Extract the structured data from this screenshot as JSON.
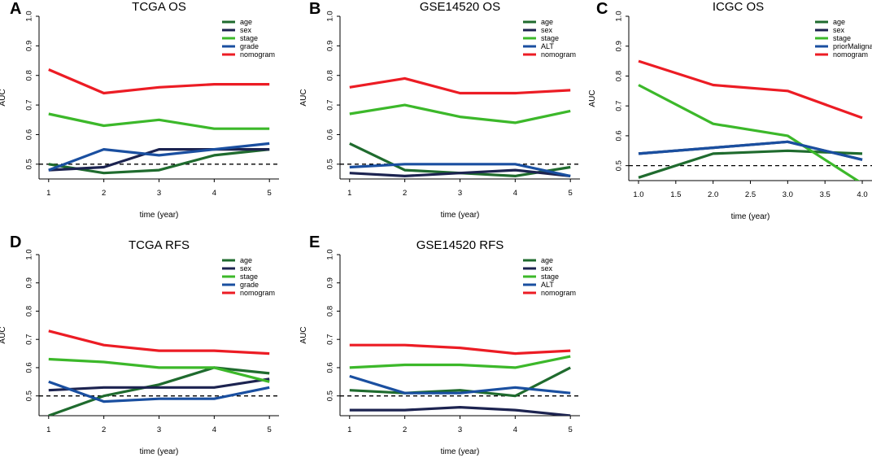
{
  "colors": {
    "age": "#1f6b2e",
    "sex": "#1c2350",
    "stage": "#3cb82a",
    "grade": "#1a4fa0",
    "ALT": "#1a4fa0",
    "priorMalignancy": "#1a4fa0",
    "nomogram": "#ec1c24",
    "reference": "#000000"
  },
  "chart_data": [
    {
      "type": "line",
      "panel": "A",
      "title": "TCGA OS",
      "xlabel": "time (year)",
      "ylabel": "AUC",
      "x": [
        1,
        2,
        3,
        4,
        5
      ],
      "xticks": [
        1,
        2,
        3,
        4,
        5
      ],
      "xtick_labels": [
        "1",
        "2",
        "3",
        "4",
        "5"
      ],
      "ylim": [
        0.45,
        1.0
      ],
      "yticks": [
        0.5,
        0.6,
        0.7,
        0.8,
        0.9,
        1.0
      ],
      "ytick_labels": [
        "0.5",
        "0.6",
        "0.7",
        "0.8",
        "0.9",
        "1.0"
      ],
      "reference_line": 0.5,
      "legend": "top-right",
      "series": [
        {
          "name": "age",
          "color_key": "age",
          "values": [
            0.5,
            0.47,
            0.48,
            0.53,
            0.55
          ]
        },
        {
          "name": "sex",
          "color_key": "sex",
          "values": [
            0.48,
            0.49,
            0.55,
            0.55,
            0.55
          ]
        },
        {
          "name": "stage",
          "color_key": "stage",
          "values": [
            0.67,
            0.63,
            0.65,
            0.62,
            0.62
          ]
        },
        {
          "name": "grade",
          "color_key": "grade",
          "values": [
            0.48,
            0.55,
            0.53,
            0.55,
            0.57
          ]
        },
        {
          "name": "nomogram",
          "color_key": "nomogram",
          "values": [
            0.82,
            0.74,
            0.76,
            0.77,
            0.77
          ]
        }
      ]
    },
    {
      "type": "line",
      "panel": "B",
      "title": "GSE14520 OS",
      "xlabel": "time (year)",
      "ylabel": "AUC",
      "x": [
        1,
        2,
        3,
        4,
        5
      ],
      "xticks": [
        1,
        2,
        3,
        4,
        5
      ],
      "xtick_labels": [
        "1",
        "2",
        "3",
        "4",
        "5"
      ],
      "ylim": [
        0.45,
        1.0
      ],
      "yticks": [
        0.5,
        0.6,
        0.7,
        0.8,
        0.9,
        1.0
      ],
      "ytick_labels": [
        "0.5",
        "0.6",
        "0.7",
        "0.8",
        "0.9",
        "1.0"
      ],
      "reference_line": 0.5,
      "legend": "top-right",
      "series": [
        {
          "name": "age",
          "color_key": "age",
          "values": [
            0.57,
            0.48,
            0.47,
            0.46,
            0.49
          ]
        },
        {
          "name": "sex",
          "color_key": "sex",
          "values": [
            0.47,
            0.46,
            0.47,
            0.48,
            0.46
          ]
        },
        {
          "name": "stage",
          "color_key": "stage",
          "values": [
            0.67,
            0.7,
            0.66,
            0.64,
            0.68
          ]
        },
        {
          "name": "ALT",
          "color_key": "ALT",
          "values": [
            0.49,
            0.5,
            0.5,
            0.5,
            0.46
          ]
        },
        {
          "name": "nomogram",
          "color_key": "nomogram",
          "values": [
            0.76,
            0.79,
            0.74,
            0.74,
            0.75
          ]
        }
      ]
    },
    {
      "type": "line",
      "panel": "C",
      "title": "ICGC OS",
      "xlabel": "time (year)",
      "ylabel": "AUC",
      "x": [
        1.0,
        2.0,
        3.0,
        4.0
      ],
      "xticks": [
        1.0,
        1.5,
        2.0,
        2.5,
        3.0,
        3.5,
        4.0
      ],
      "xtick_labels": [
        "1.0",
        "1.5",
        "2.0",
        "2.5",
        "3.0",
        "3.5",
        "4.0"
      ],
      "ylim": [
        0.45,
        1.0
      ],
      "yticks": [
        0.5,
        0.6,
        0.7,
        0.8,
        0.9,
        1.0
      ],
      "ytick_labels": [
        "0.5",
        "0.6",
        "0.7",
        "0.8",
        "0.9",
        "1.0"
      ],
      "reference_line": 0.5,
      "legend": "top-right",
      "series": [
        {
          "name": "age",
          "color_key": "age",
          "values": [
            0.46,
            0.54,
            0.55,
            0.54
          ]
        },
        {
          "name": "sex",
          "color_key": "sex",
          "values": [
            0.54,
            0.56,
            0.58,
            0.52
          ]
        },
        {
          "name": "stage",
          "color_key": "stage",
          "values": [
            0.77,
            0.64,
            0.6,
            0.44
          ]
        },
        {
          "name": "priorMalignancy",
          "color_key": "priorMalignancy",
          "values": [
            0.54,
            0.56,
            0.58,
            0.52
          ]
        },
        {
          "name": "nomogram",
          "color_key": "nomogram",
          "values": [
            0.85,
            0.77,
            0.75,
            0.66
          ]
        }
      ]
    },
    {
      "type": "line",
      "panel": "D",
      "title": "TCGA RFS",
      "xlabel": "time (year)",
      "ylabel": "AUC",
      "x": [
        1,
        2,
        3,
        4,
        5
      ],
      "xticks": [
        1,
        2,
        3,
        4,
        5
      ],
      "xtick_labels": [
        "1",
        "2",
        "3",
        "4",
        "5"
      ],
      "ylim": [
        0.43,
        1.0
      ],
      "yticks": [
        0.5,
        0.6,
        0.7,
        0.8,
        0.9,
        1.0
      ],
      "ytick_labels": [
        "0.5",
        "0.6",
        "0.7",
        "0.8",
        "0.9",
        "1.0"
      ],
      "reference_line": 0.5,
      "legend": "top-right",
      "series": [
        {
          "name": "age",
          "color_key": "age",
          "values": [
            0.43,
            0.5,
            0.54,
            0.6,
            0.58
          ]
        },
        {
          "name": "sex",
          "color_key": "sex",
          "values": [
            0.52,
            0.53,
            0.53,
            0.53,
            0.56
          ]
        },
        {
          "name": "stage",
          "color_key": "stage",
          "values": [
            0.63,
            0.62,
            0.6,
            0.6,
            0.55
          ]
        },
        {
          "name": "grade",
          "color_key": "grade",
          "values": [
            0.55,
            0.48,
            0.49,
            0.49,
            0.53
          ]
        },
        {
          "name": "nomogram",
          "color_key": "nomogram",
          "values": [
            0.73,
            0.68,
            0.66,
            0.66,
            0.65
          ]
        }
      ]
    },
    {
      "type": "line",
      "panel": "E",
      "title": "GSE14520 RFS",
      "xlabel": "time (year)",
      "ylabel": "AUC",
      "x": [
        1,
        2,
        3,
        4,
        5
      ],
      "xticks": [
        1,
        2,
        3,
        4,
        5
      ],
      "xtick_labels": [
        "1",
        "2",
        "3",
        "4",
        "5"
      ],
      "ylim": [
        0.43,
        1.0
      ],
      "yticks": [
        0.5,
        0.6,
        0.7,
        0.8,
        0.9,
        1.0
      ],
      "ytick_labels": [
        "0.5",
        "0.6",
        "0.7",
        "0.8",
        "0.9",
        "1.0"
      ],
      "reference_line": 0.5,
      "legend": "top-right",
      "series": [
        {
          "name": "age",
          "color_key": "age",
          "values": [
            0.52,
            0.51,
            0.52,
            0.5,
            0.6
          ]
        },
        {
          "name": "sex",
          "color_key": "sex",
          "values": [
            0.45,
            0.45,
            0.46,
            0.45,
            0.43
          ]
        },
        {
          "name": "stage",
          "color_key": "stage",
          "values": [
            0.6,
            0.61,
            0.61,
            0.6,
            0.64
          ]
        },
        {
          "name": "ALT",
          "color_key": "ALT",
          "values": [
            0.57,
            0.51,
            0.51,
            0.53,
            0.51
          ]
        },
        {
          "name": "nomogram",
          "color_key": "nomogram",
          "values": [
            0.68,
            0.68,
            0.67,
            0.65,
            0.66
          ]
        }
      ]
    }
  ]
}
